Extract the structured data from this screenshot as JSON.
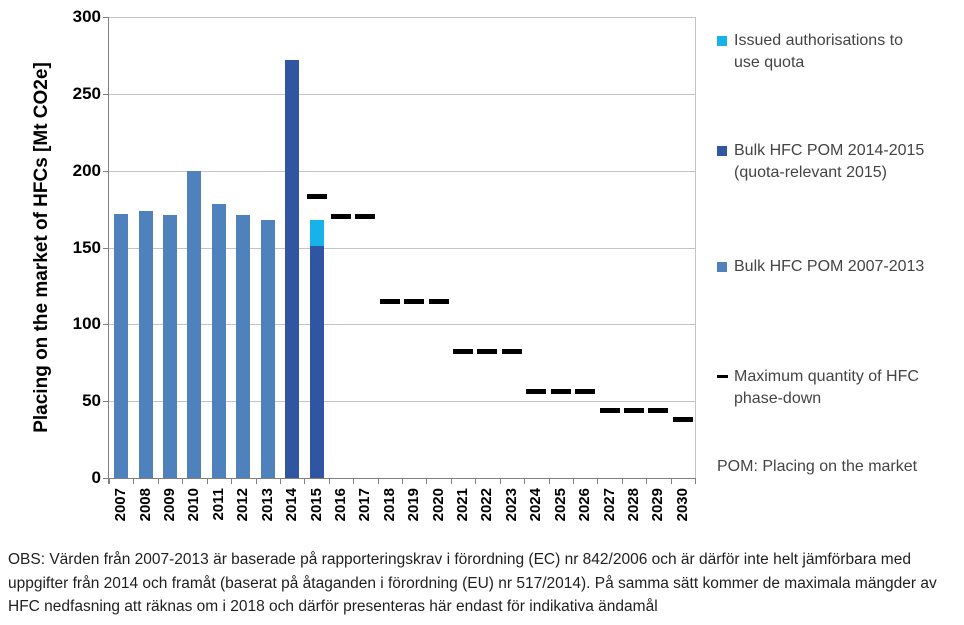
{
  "chart_data": {
    "type": "bar",
    "title": "",
    "ylabel": "Placing on the market of HFCs [Mt CO2e]",
    "xlabel": "",
    "ylim": [
      0,
      300
    ],
    "yticks": [
      0,
      50,
      100,
      150,
      200,
      250,
      300
    ],
    "grid": true,
    "legend_position": "right",
    "categories": [
      "2007",
      "2008",
      "2009",
      "2010",
      "2011",
      "2012",
      "2013",
      "2014",
      "2015",
      "2016",
      "2017",
      "2018",
      "2019",
      "2020",
      "2021",
      "2022",
      "2023",
      "2024",
      "2025",
      "2026",
      "2027",
      "2028",
      "2029",
      "2030"
    ],
    "series": [
      {
        "name": "Bulk HFC POM 2007-2013",
        "type": "bar",
        "color": "#4F81BD",
        "values": [
          172,
          174,
          171,
          200,
          178,
          171,
          168,
          null,
          null,
          null,
          null,
          null,
          null,
          null,
          null,
          null,
          null,
          null,
          null,
          null,
          null,
          null,
          null,
          null
        ]
      },
      {
        "name": "Bulk HFC POM 2014-2015 (quota-relevant 2015)",
        "type": "bar",
        "color": "#2F55A3",
        "values": [
          null,
          null,
          null,
          null,
          null,
          null,
          null,
          272,
          151,
          null,
          null,
          null,
          null,
          null,
          null,
          null,
          null,
          null,
          null,
          null,
          null,
          null,
          null,
          null
        ]
      },
      {
        "name": "Issued authorisations to use quota",
        "type": "bar-stacked-on-previous",
        "color": "#18B2EA",
        "values": [
          null,
          null,
          null,
          null,
          null,
          null,
          null,
          null,
          17,
          null,
          null,
          null,
          null,
          null,
          null,
          null,
          null,
          null,
          null,
          null,
          null,
          null,
          null,
          null
        ]
      },
      {
        "name": "Maximum quantity of HFC phase-down",
        "type": "dash",
        "color": "#000000",
        "values": [
          null,
          null,
          null,
          null,
          null,
          null,
          null,
          null,
          183,
          170,
          170,
          115,
          115,
          115,
          82,
          82,
          82,
          56,
          56,
          56,
          44,
          44,
          44,
          38
        ]
      }
    ]
  },
  "legend": {
    "items": [
      {
        "label_lines": [
          "Issued authorisations to",
          "use quota"
        ],
        "marker": "square",
        "color": "#18B2EA"
      },
      {
        "label_lines": [
          "Bulk HFC POM 2014-2015",
          "(quota-relevant 2015)"
        ],
        "marker": "square",
        "color": "#2F55A3"
      },
      {
        "label_lines": [
          "Bulk HFC POM 2007-2013"
        ],
        "marker": "square",
        "color": "#4F81BD"
      },
      {
        "label_lines": [
          "Maximum quantity of HFC",
          "phase-down"
        ],
        "marker": "dash",
        "color": "#000000"
      }
    ],
    "note": "POM: Placing on the market"
  },
  "footer": {
    "lines": [
      "OBS: Värden från 2007-2013 är baserade på rapporteringskrav i förordning (EC) nr 842/2006 och är därför inte helt jämförbara med",
      "uppgifter från 2014 och framåt (baserat på åtaganden i förordning (EU) nr 517/2014). På samma sätt kommer de maximala mängder av",
      "HFC nedfasning att räknas om i 2018 och därför presenteras här endast för indikativa ändamål"
    ]
  },
  "colors": {
    "bulk_2007_2013": "#4F81BD",
    "bulk_2014_2015": "#2F55A3",
    "issued_authorisations": "#18B2EA",
    "max_quantity": "#000000",
    "gridline": "#c4c4c4",
    "axis": "#808080"
  }
}
